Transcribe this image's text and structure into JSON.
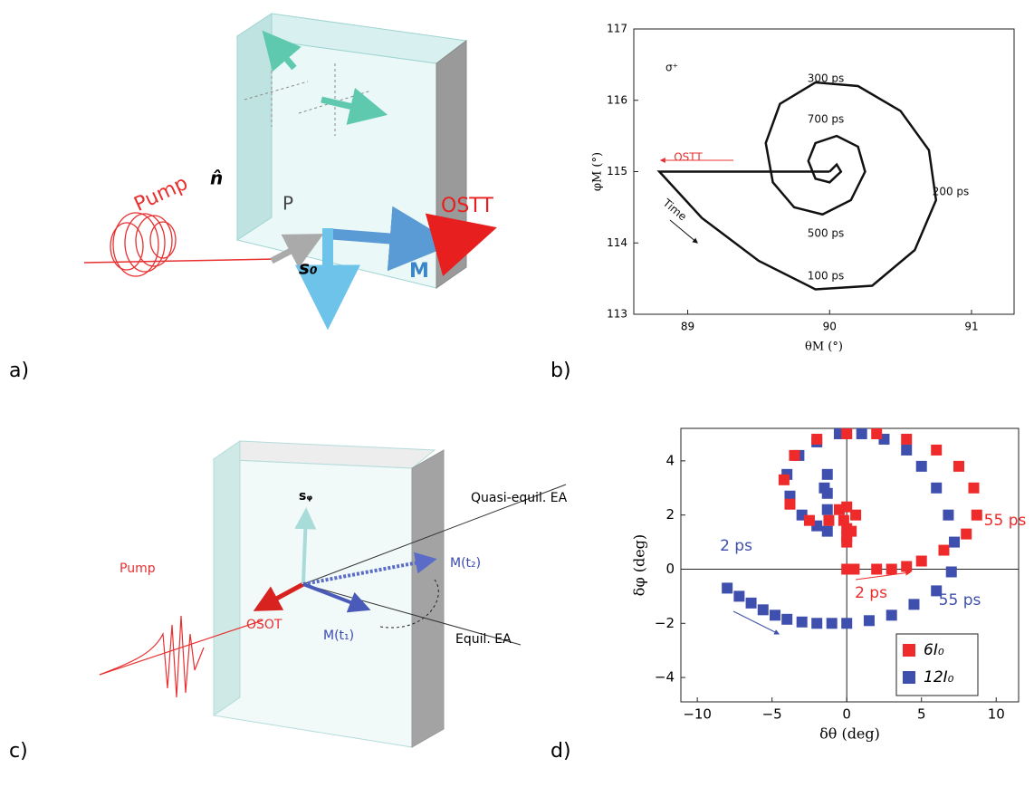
{
  "panel_labels": [
    "a)",
    "b)",
    "c)",
    "d)"
  ],
  "diagram_a": {
    "pump": "Pump",
    "normal": "n̂",
    "p": "P",
    "s0": "s₀",
    "m": "M",
    "ostt": "OSTT"
  },
  "diagram_c": {
    "pump": "Pump",
    "s_phi": "sᵩ",
    "quasi_ea": "Quasi-equil. EA",
    "m_t2": "M(t₂)",
    "m_t1": "M(t₁)",
    "equil_ea": "Equil. EA",
    "osot": "OSOT"
  },
  "chart_data": [
    {
      "type": "line",
      "x_label": "θM (°)",
      "y_label": "φM (°)",
      "xlim": [
        88.62,
        91.3
      ],
      "ylim": [
        113,
        117
      ],
      "xticks": [
        89,
        90,
        91
      ],
      "yticks": [
        113,
        114,
        115,
        116,
        117
      ],
      "annotations": [
        "σ⁺",
        "300 ps",
        "700 ps",
        "200 ps",
        "500 ps",
        "100 ps",
        "OSTT",
        "Time"
      ],
      "series": [
        {
          "color": "#111111",
          "x": [
            90.0,
            88.8,
            89.1,
            89.5,
            89.9,
            90.3,
            90.6,
            90.75,
            90.7,
            90.5,
            90.2,
            89.9,
            89.65,
            89.55,
            89.6,
            89.75,
            89.95,
            90.15,
            90.25,
            90.2,
            90.05,
            89.9,
            89.85,
            89.9,
            90.0,
            90.08,
            90.05,
            90.0
          ],
          "values": [
            115.0,
            115.0,
            114.35,
            113.75,
            113.35,
            113.4,
            113.9,
            114.6,
            115.3,
            115.85,
            116.2,
            116.25,
            115.95,
            115.4,
            114.85,
            114.5,
            114.4,
            114.6,
            115.0,
            115.35,
            115.5,
            115.4,
            115.15,
            114.9,
            114.85,
            115.0,
            115.1,
            115.0
          ]
        }
      ]
    },
    {
      "type": "scatter",
      "x_label": "δθ (deg)",
      "y_label": "δφ (deg)",
      "xlim": [
        -11.1,
        11.5
      ],
      "ylim": [
        -4.9,
        5.2
      ],
      "xticks": [
        {
          "value": -10,
          "label": "−10"
        },
        {
          "value": -5,
          "label": "−5"
        },
        0,
        5,
        10
      ],
      "yticks": [
        {
          "value": -4,
          "label": "−4"
        },
        {
          "value": -2,
          "label": "−2"
        },
        0,
        2,
        4
      ],
      "annotations": [
        "2 ps",
        "55 ps",
        "2 ps",
        "55 ps"
      ],
      "series": [
        {
          "name": "6I₀",
          "color": "#ee2a2a",
          "x": [
            0,
            0.5,
            2,
            3,
            4,
            5,
            6.5,
            8,
            8.7,
            8.5,
            7.5,
            6,
            4,
            2,
            0,
            -2,
            -3.5,
            -4.2,
            -3.8,
            -2.5,
            -1.2,
            -0.5,
            0,
            0.6,
            0.3,
            0,
            -0.2,
            0,
            0
          ],
          "values": [
            0,
            0,
            0,
            0,
            0.1,
            0.3,
            0.7,
            1.3,
            2,
            3,
            3.8,
            4.4,
            4.8,
            5,
            5,
            4.8,
            4.2,
            3.3,
            2.4,
            1.8,
            1.8,
            2.2,
            2.3,
            2,
            1.4,
            1.5,
            1.8,
            1.2,
            1
          ]
        },
        {
          "name": "12I₀",
          "color": "#3f4fae",
          "x": [
            -8,
            -7.2,
            -6.4,
            -5.6,
            -4.8,
            -4,
            -3,
            -2,
            -1,
            0,
            1.5,
            3,
            4.5,
            6,
            7,
            7.2,
            6.8,
            6,
            5,
            4,
            2.5,
            1,
            -0.5,
            -2,
            -3.2,
            -4,
            -3.8,
            -3,
            -2,
            -1.3,
            -1.3,
            -1.5,
            -1.3,
            -1.3
          ],
          "values": [
            -0.7,
            -1,
            -1.25,
            -1.5,
            -1.7,
            -1.85,
            -1.95,
            -2,
            -2,
            -2,
            -1.9,
            -1.7,
            -1.3,
            -0.8,
            -0.1,
            1,
            2,
            3,
            3.8,
            4.4,
            4.8,
            5,
            5,
            4.7,
            4.2,
            3.5,
            2.7,
            2,
            1.6,
            1.4,
            2.2,
            3,
            3.5,
            2.8
          ]
        }
      ]
    }
  ]
}
